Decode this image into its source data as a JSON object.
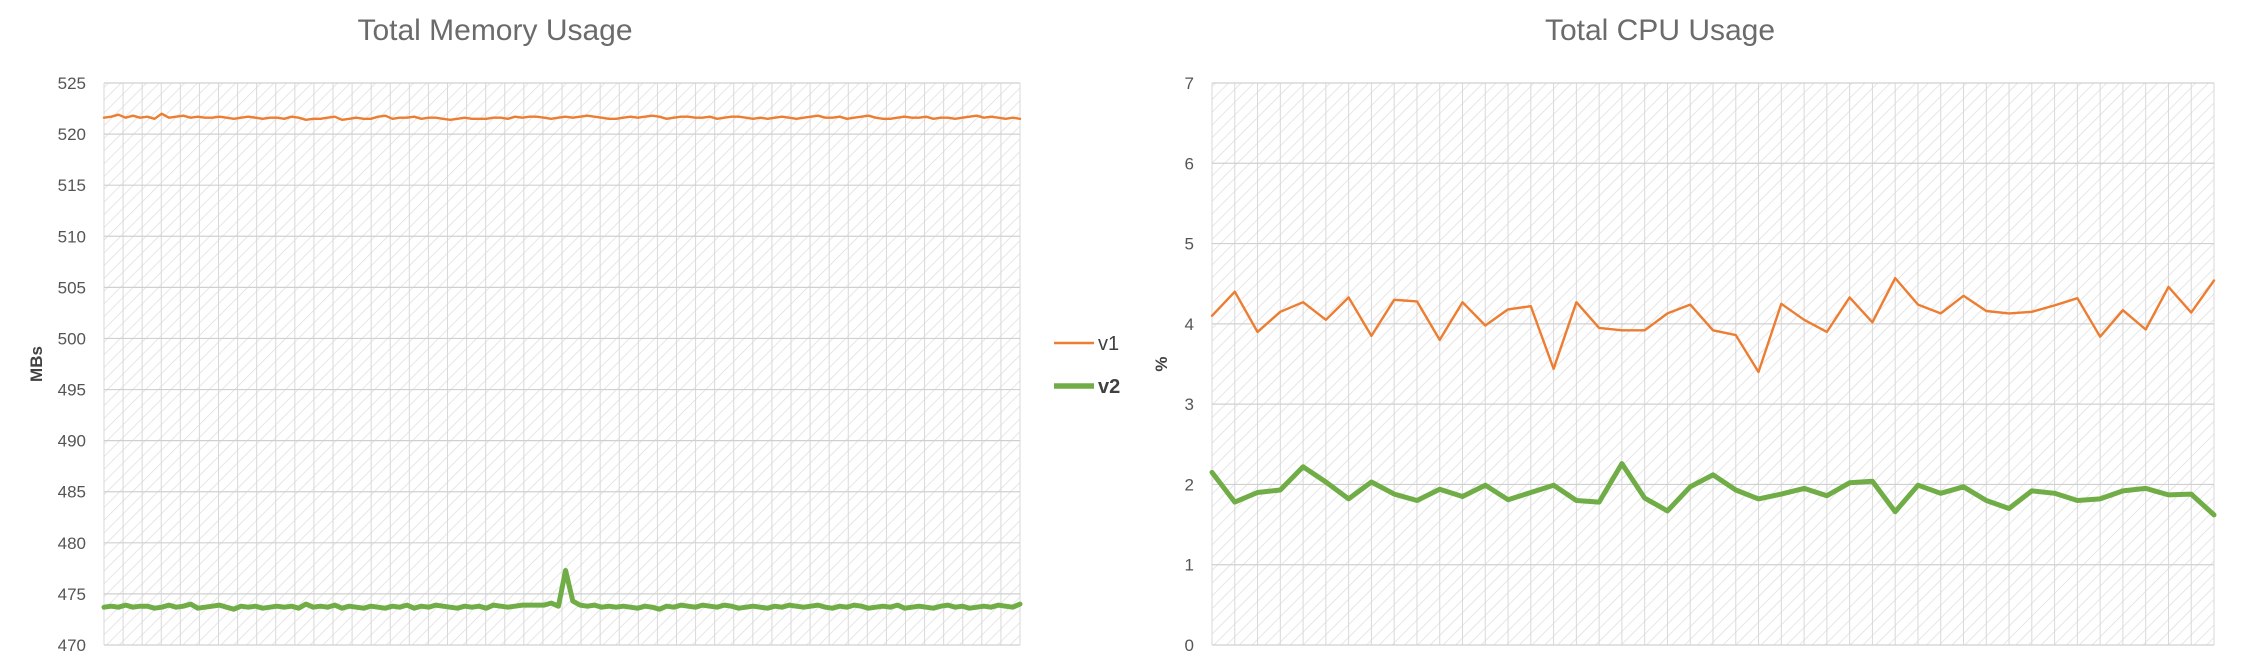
{
  "chart_data": [
    {
      "type": "line",
      "title": "Total Memory Usage",
      "xlabel": "",
      "ylabel": "MBs",
      "ylim": [
        470,
        525
      ],
      "yticks": [
        470,
        475,
        480,
        485,
        490,
        495,
        500,
        505,
        510,
        515,
        520,
        525
      ],
      "grid": true,
      "legend": "right",
      "series": [
        {
          "name": "v1",
          "color": "#ED7D31",
          "values": [
            521.6,
            521.7,
            521.9,
            521.6,
            521.8,
            521.6,
            521.7,
            521.5,
            522.0,
            521.6,
            521.7,
            521.8,
            521.6,
            521.7,
            521.6,
            521.6,
            521.7,
            521.6,
            521.5,
            521.6,
            521.7,
            521.6,
            521.5,
            521.6,
            521.6,
            521.5,
            521.7,
            521.6,
            521.4,
            521.5,
            521.5,
            521.6,
            521.7,
            521.4,
            521.5,
            521.6,
            521.5,
            521.5,
            521.7,
            521.8,
            521.5,
            521.6,
            521.6,
            521.7,
            521.5,
            521.6,
            521.6,
            521.5,
            521.4,
            521.5,
            521.6,
            521.5,
            521.5,
            521.5,
            521.6,
            521.6,
            521.5,
            521.7,
            521.6,
            521.7,
            521.7,
            521.6,
            521.5,
            521.6,
            521.7,
            521.6,
            521.7,
            521.8,
            521.7,
            521.6,
            521.5,
            521.5,
            521.6,
            521.7,
            521.6,
            521.7,
            521.8,
            521.7,
            521.5,
            521.6,
            521.7,
            521.7,
            521.6,
            521.6,
            521.7,
            521.5,
            521.6,
            521.7,
            521.7,
            521.6,
            521.5,
            521.6,
            521.5,
            521.6,
            521.7,
            521.6,
            521.5,
            521.6,
            521.7,
            521.8,
            521.6,
            521.6,
            521.7,
            521.5,
            521.6,
            521.7,
            521.8,
            521.6,
            521.5,
            521.5,
            521.6,
            521.7,
            521.6,
            521.6,
            521.7,
            521.5,
            521.6,
            521.6,
            521.5,
            521.6,
            521.7,
            521.8,
            521.6,
            521.7,
            521.6,
            521.5,
            521.6,
            521.5
          ]
        },
        {
          "name": "v2",
          "color": "#70AD47",
          "values": [
            473.7,
            473.8,
            473.7,
            473.9,
            473.7,
            473.8,
            473.8,
            473.6,
            473.7,
            473.9,
            473.7,
            473.8,
            474.0,
            473.6,
            473.7,
            473.8,
            473.9,
            473.7,
            473.5,
            473.8,
            473.7,
            473.8,
            473.6,
            473.7,
            473.8,
            473.7,
            473.8,
            473.6,
            474.0,
            473.7,
            473.8,
            473.7,
            473.9,
            473.6,
            473.8,
            473.7,
            473.6,
            473.8,
            473.7,
            473.6,
            473.8,
            473.7,
            473.9,
            473.6,
            473.8,
            473.7,
            473.9,
            473.8,
            473.7,
            473.6,
            473.8,
            473.7,
            473.8,
            473.6,
            473.9,
            473.8,
            473.7,
            473.8,
            473.9,
            473.9,
            473.9,
            473.9,
            474.1,
            473.8,
            477.3,
            474.3,
            473.9,
            473.8,
            473.9,
            473.7,
            473.8,
            473.7,
            473.8,
            473.7,
            473.6,
            473.8,
            473.7,
            473.5,
            473.8,
            473.7,
            473.9,
            473.8,
            473.7,
            473.9,
            473.8,
            473.7,
            473.9,
            473.8,
            473.6,
            473.7,
            473.8,
            473.7,
            473.6,
            473.8,
            473.7,
            473.9,
            473.8,
            473.7,
            473.8,
            473.9,
            473.7,
            473.6,
            473.8,
            473.7,
            473.9,
            473.8,
            473.6,
            473.7,
            473.8,
            473.7,
            473.9,
            473.6,
            473.7,
            473.8,
            473.7,
            473.6,
            473.8,
            473.9,
            473.7,
            473.8,
            473.6,
            473.7,
            473.8,
            473.7,
            473.9,
            473.8,
            473.7,
            474.0
          ]
        }
      ]
    },
    {
      "type": "line",
      "title": "Total CPU Usage",
      "xlabel": "",
      "ylabel": "%",
      "ylim": [
        0,
        7
      ],
      "yticks": [
        0,
        1,
        2,
        3,
        4,
        5,
        6,
        7
      ],
      "grid": true,
      "legend": "left",
      "series": [
        {
          "name": "v1",
          "color": "#ED7D31",
          "values": [
            4.1,
            4.4,
            3.9,
            4.15,
            4.27,
            4.05,
            4.33,
            3.85,
            4.3,
            4.28,
            3.8,
            4.27,
            3.98,
            4.18,
            4.22,
            3.44,
            4.27,
            3.95,
            3.92,
            3.92,
            4.13,
            4.24,
            3.92,
            3.86,
            3.4,
            4.25,
            4.05,
            3.9,
            4.33,
            4.02,
            4.57,
            4.24,
            4.13,
            4.35,
            4.16,
            4.13,
            4.15,
            4.23,
            4.32,
            3.84,
            4.17,
            3.93,
            4.46,
            4.14,
            4.54
          ]
        },
        {
          "name": "v2",
          "color": "#70AD47",
          "values": [
            2.15,
            1.78,
            1.9,
            1.93,
            2.22,
            2.03,
            1.82,
            2.03,
            1.88,
            1.8,
            1.94,
            1.85,
            1.99,
            1.81,
            1.9,
            1.99,
            1.8,
            1.78,
            2.26,
            1.83,
            1.67,
            1.97,
            2.12,
            1.93,
            1.82,
            1.88,
            1.95,
            1.86,
            2.02,
            2.04,
            1.66,
            1.99,
            1.89,
            1.97,
            1.8,
            1.7,
            1.92,
            1.89,
            1.8,
            1.82,
            1.92,
            1.95,
            1.87,
            1.88,
            1.62
          ]
        }
      ]
    }
  ]
}
